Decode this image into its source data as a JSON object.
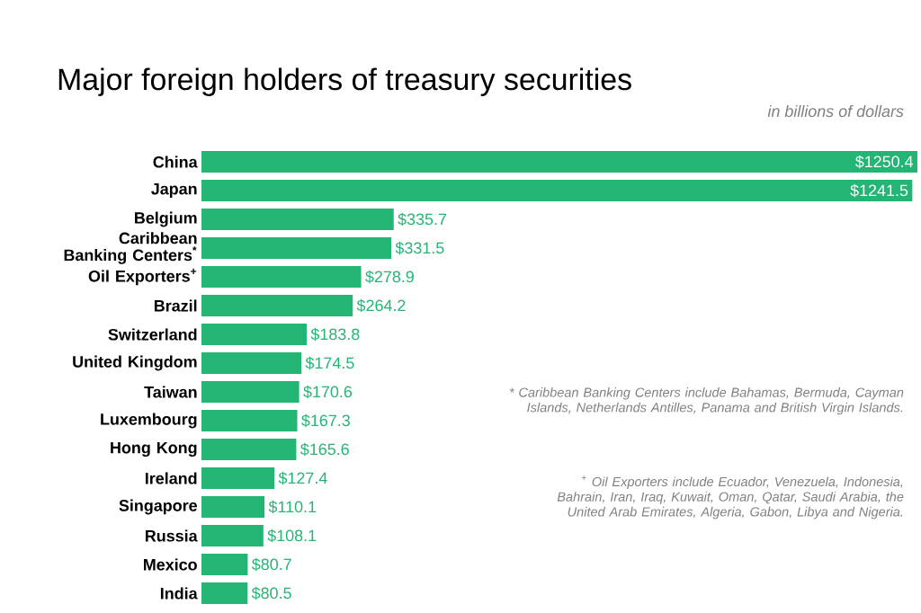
{
  "chart_data": {
    "type": "bar",
    "orientation": "horizontal",
    "title": "Major foreign holders of treasury securities",
    "subtitle": "in billions of dollars",
    "categories": [
      "China",
      "Japan",
      "Belgium",
      "Caribbean Banking Centers$^{*}$",
      "Oil Exporters$^{+}$",
      "Brazil",
      "Switzerland",
      "United Kingdom",
      "Taiwan",
      "Luxembourg",
      "Hong Kong",
      "Ireland",
      "Singapore",
      "Russia",
      "Mexico",
      "India"
    ],
    "values": [
      1250.4,
      1241.5,
      335.7,
      331.5,
      278.9,
      264.2,
      183.8,
      174.5,
      170.6,
      167.3,
      165.6,
      127.4,
      110.1,
      108.1,
      80.7,
      80.5
    ],
    "value_labels": [
      "$1250.4",
      "$1241.5",
      "$335.7",
      "$331.5",
      "$278.9",
      "$264.2",
      "$183.8",
      "$174.5",
      "$170.6",
      "$167.3",
      "$165.6",
      "$127.4",
      "$110.1",
      "$108.1",
      "$80.7",
      "$80.5"
    ],
    "color": "#22b573",
    "annotations": [
      "* Caribbean Banking Centers include Bahamas, Bermuda, Cayman Islands, Netherlands Antilles, Panama and British Virgin Islands.",
      "$^{+}$ Oil Exporters include Ecuador, Venezuela, Indonesia, Bahrain, Iran, Iraq, Kuwait, Oman, Qatar, Saudi Arabia, the United Arab Emirates, Algeria, Gabon, Libya and Nigeria."
    ]
  }
}
